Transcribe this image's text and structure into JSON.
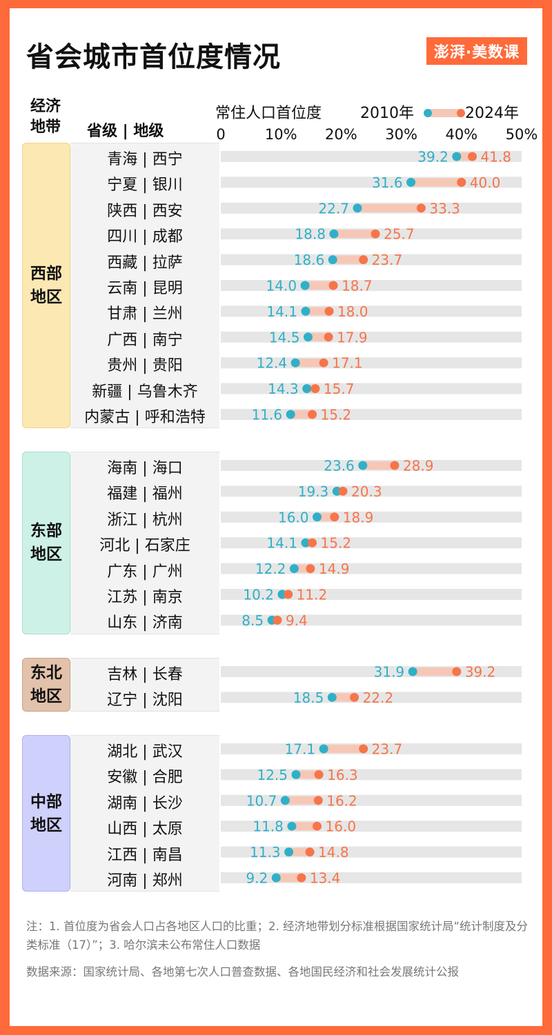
{
  "title": "省会城市首位度情况",
  "logo": "澎湃·美数课",
  "headers": {
    "zone": "经济地带",
    "prov": "省级 | 地级",
    "metric": "常住人口首位度"
  },
  "colors": {
    "c2010": "#2fb0c8",
    "c2024": "#f6754a",
    "band": "#f6c7b6",
    "track": "#e6e6e6"
  },
  "chart_data": {
    "type": "dumbbell",
    "x_ticks": [
      "0",
      "10%",
      "20%",
      "30%",
      "40%",
      "50%"
    ],
    "xlim": [
      0,
      50
    ],
    "series": [
      {
        "name": "2010年"
      },
      {
        "name": "2024年"
      }
    ],
    "groups": [
      {
        "zone": "西部地区",
        "rows": [
          {
            "label": "青海 | 西宁",
            "v2010": 39.2,
            "v2024": 41.8
          },
          {
            "label": "宁夏 | 银川",
            "v2010": 31.6,
            "v2024": 40.0
          },
          {
            "label": "陕西 | 西安",
            "v2010": 22.7,
            "v2024": 33.3
          },
          {
            "label": "四川 | 成都",
            "v2010": 18.8,
            "v2024": 25.7
          },
          {
            "label": "西藏 | 拉萨",
            "v2010": 18.6,
            "v2024": 23.7
          },
          {
            "label": "云南 | 昆明",
            "v2010": 14.0,
            "v2024": 18.7
          },
          {
            "label": "甘肃 | 兰州",
            "v2010": 14.1,
            "v2024": 18.0
          },
          {
            "label": "广西 | 南宁",
            "v2010": 14.5,
            "v2024": 17.9
          },
          {
            "label": "贵州 | 贵阳",
            "v2010": 12.4,
            "v2024": 17.1
          },
          {
            "label": "新疆 | 乌鲁木齐",
            "v2010": 14.3,
            "v2024": 15.7
          },
          {
            "label": "内蒙古 | 呼和浩特",
            "v2010": 11.6,
            "v2024": 15.2
          }
        ]
      },
      {
        "zone": "东部地区",
        "rows": [
          {
            "label": "海南 | 海口",
            "v2010": 23.6,
            "v2024": 28.9
          },
          {
            "label": "福建 | 福州",
            "v2010": 19.3,
            "v2024": 20.3
          },
          {
            "label": "浙江 | 杭州",
            "v2010": 16.0,
            "v2024": 18.9
          },
          {
            "label": "河北 | 石家庄",
            "v2010": 14.1,
            "v2024": 15.2
          },
          {
            "label": "广东 | 广州",
            "v2010": 12.2,
            "v2024": 14.9
          },
          {
            "label": "江苏 | 南京",
            "v2010": 10.2,
            "v2024": 11.2
          },
          {
            "label": "山东 | 济南",
            "v2010": 8.5,
            "v2024": 9.4
          }
        ]
      },
      {
        "zone": "东北地区",
        "rows": [
          {
            "label": "吉林 | 长春",
            "v2010": 31.9,
            "v2024": 39.2
          },
          {
            "label": "辽宁 | 沈阳",
            "v2010": 18.5,
            "v2024": 22.2
          }
        ]
      },
      {
        "zone": "中部地区",
        "rows": [
          {
            "label": "湖北 | 武汉",
            "v2010": 17.1,
            "v2024": 23.7
          },
          {
            "label": "安徽 | 合肥",
            "v2010": 12.5,
            "v2024": 16.3
          },
          {
            "label": "湖南 | 长沙",
            "v2010": 10.7,
            "v2024": 16.2
          },
          {
            "label": "山西 | 太原",
            "v2010": 11.8,
            "v2024": 16.0
          },
          {
            "label": "江西 | 南昌",
            "v2010": 11.3,
            "v2024": 14.8
          },
          {
            "label": "河南 | 郑州",
            "v2010": 9.2,
            "v2024": 13.4
          }
        ]
      }
    ]
  },
  "notes": {
    "note": "注：1. 首位度为省会人口占各地区人口的比重；2. 经济地带划分标准根据国家统计局“统计制度及分类标准（17）”；3. 哈尔滨未公布常住人口数据",
    "source": "数据来源：国家统计局、各地第七次人口普查数据、各地国民经济和社会发展统计公报"
  }
}
